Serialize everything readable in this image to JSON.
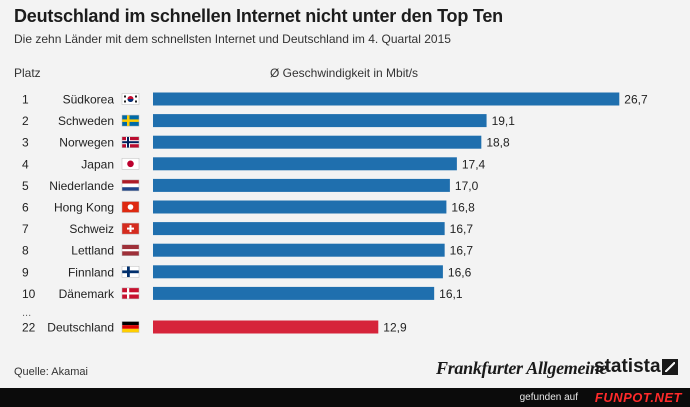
{
  "header": {
    "title": "Deutschland im schnellen Internet nicht unter den Top Ten",
    "subtitle": "Die zehn Länder mit dem schnellsten Internet und Deutschland im 4. Quartal 2015",
    "col_rank": "Platz",
    "col_value": "Ø Geschwindigkeit in Mbit/s"
  },
  "chart_data": {
    "type": "bar",
    "orientation": "horizontal",
    "xlim": [
      0,
      28
    ],
    "grid": false,
    "bar_color": "#1f6fae",
    "highlight_color": "#d6243a",
    "rows": [
      {
        "rank": "1",
        "country": "Südkorea",
        "value": 26.7,
        "label": "26,7",
        "flag": "kr"
      },
      {
        "rank": "2",
        "country": "Schweden",
        "value": 19.1,
        "label": "19,1",
        "flag": "se"
      },
      {
        "rank": "3",
        "country": "Norwegen",
        "value": 18.8,
        "label": "18,8",
        "flag": "no"
      },
      {
        "rank": "4",
        "country": "Japan",
        "value": 17.4,
        "label": "17,4",
        "flag": "jp"
      },
      {
        "rank": "5",
        "country": "Niederlande",
        "value": 17.0,
        "label": "17,0",
        "flag": "nl"
      },
      {
        "rank": "6",
        "country": "Hong Kong",
        "value": 16.8,
        "label": "16,8",
        "flag": "hk"
      },
      {
        "rank": "7",
        "country": "Schweiz",
        "value": 16.7,
        "label": "16,7",
        "flag": "ch"
      },
      {
        "rank": "8",
        "country": "Lettland",
        "value": 16.7,
        "label": "16,7",
        "flag": "lv"
      },
      {
        "rank": "9",
        "country": "Finnland",
        "value": 16.6,
        "label": "16,6",
        "flag": "fi"
      },
      {
        "rank": "10",
        "country": "Dänemark",
        "value": 16.1,
        "label": "16,1",
        "flag": "dk"
      }
    ],
    "separator": "...",
    "highlight": {
      "rank": "22",
      "country": "Deutschland",
      "value": 12.9,
      "label": "12,9",
      "flag": "de"
    }
  },
  "footer": {
    "source": "Quelle: Akamai",
    "logo_faz": "Frankfurter Allgemeine",
    "logo_statista": "statista"
  },
  "watermark": {
    "text": "gefunden auf",
    "logo": "FUNPOT.NET"
  }
}
